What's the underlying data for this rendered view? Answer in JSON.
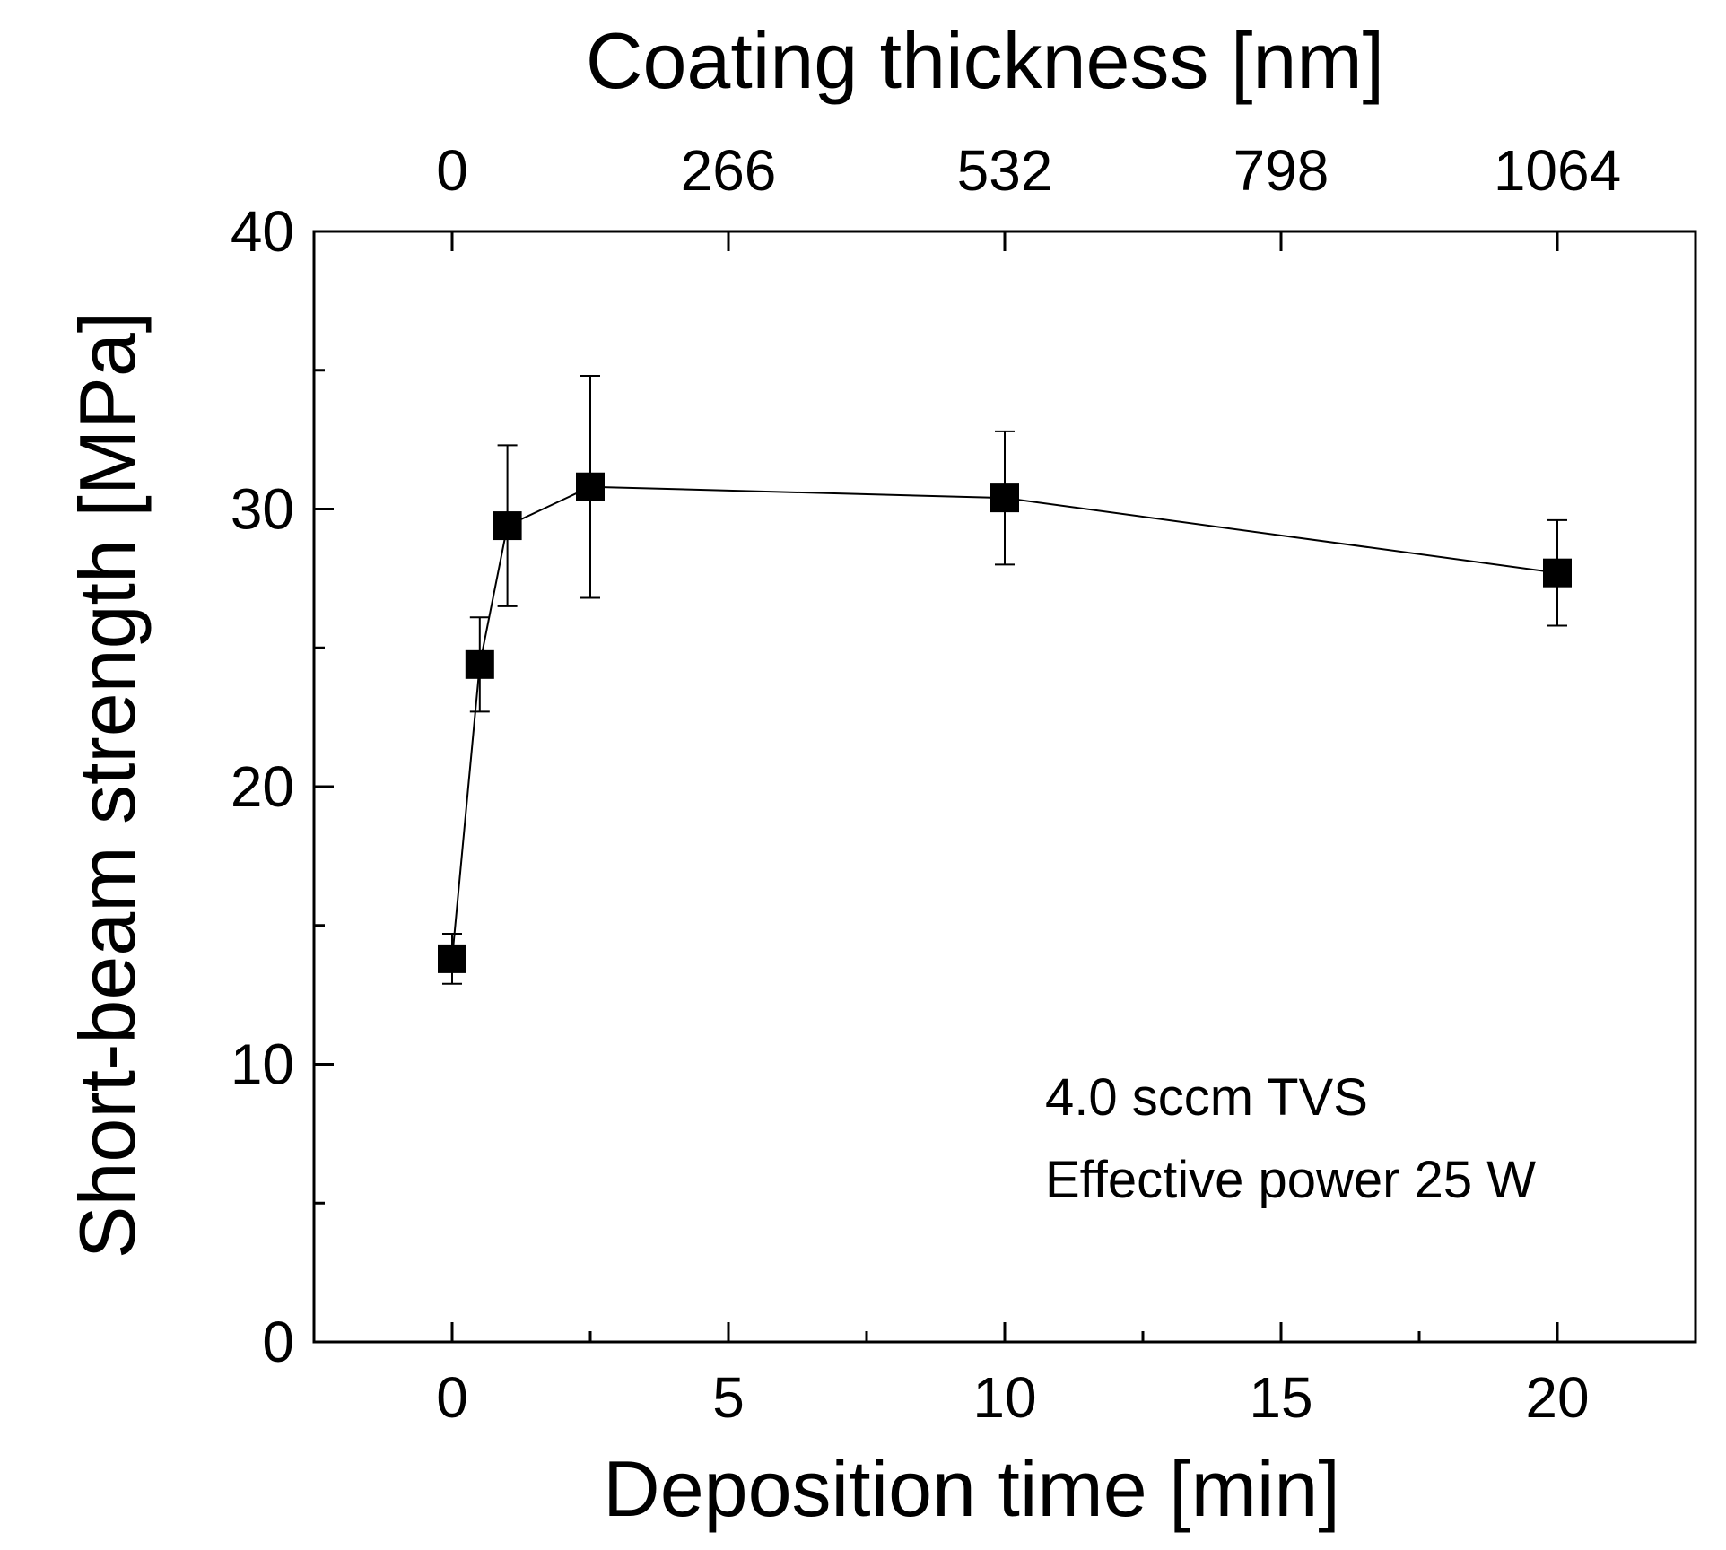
{
  "chart_data": {
    "type": "scatter",
    "xlabel": "Deposition time [min]",
    "ylabel": "Short-beam strength [MPa]",
    "x2label": "Coating thickness [nm]",
    "xlim": [
      -2.5,
      22.5
    ],
    "ylim": [
      0,
      40
    ],
    "x_ticks": [
      0,
      5,
      10,
      15,
      20
    ],
    "x_minor_ticks": [
      2.5,
      7.5,
      12.5,
      17.5
    ],
    "y_ticks": [
      0,
      10,
      20,
      30,
      40
    ],
    "y_minor_ticks": [
      5,
      15,
      25,
      35
    ],
    "x2_ticks": [
      {
        "x": 0,
        "label": "0"
      },
      {
        "x": 5,
        "label": "266"
      },
      {
        "x": 10,
        "label": "532"
      },
      {
        "x": 15,
        "label": "798"
      },
      {
        "x": 20,
        "label": "1064"
      }
    ],
    "grid": false,
    "annotations": [
      "4.0 sccm TVS",
      "Effective power 25 W"
    ],
    "series": [
      {
        "marker": "square",
        "color": "#000000",
        "connected": true,
        "points": [
          {
            "x": 0,
            "y": 13.8,
            "err": 0.9
          },
          {
            "x": 0.5,
            "y": 24.4,
            "err": 1.7
          },
          {
            "x": 1,
            "y": 29.4,
            "err": 2.9
          },
          {
            "x": 2.5,
            "y": 30.8,
            "err": 4.0
          },
          {
            "x": 10,
            "y": 30.4,
            "err": 2.4
          },
          {
            "x": 20,
            "y": 27.7,
            "err": 1.9
          }
        ]
      }
    ]
  }
}
